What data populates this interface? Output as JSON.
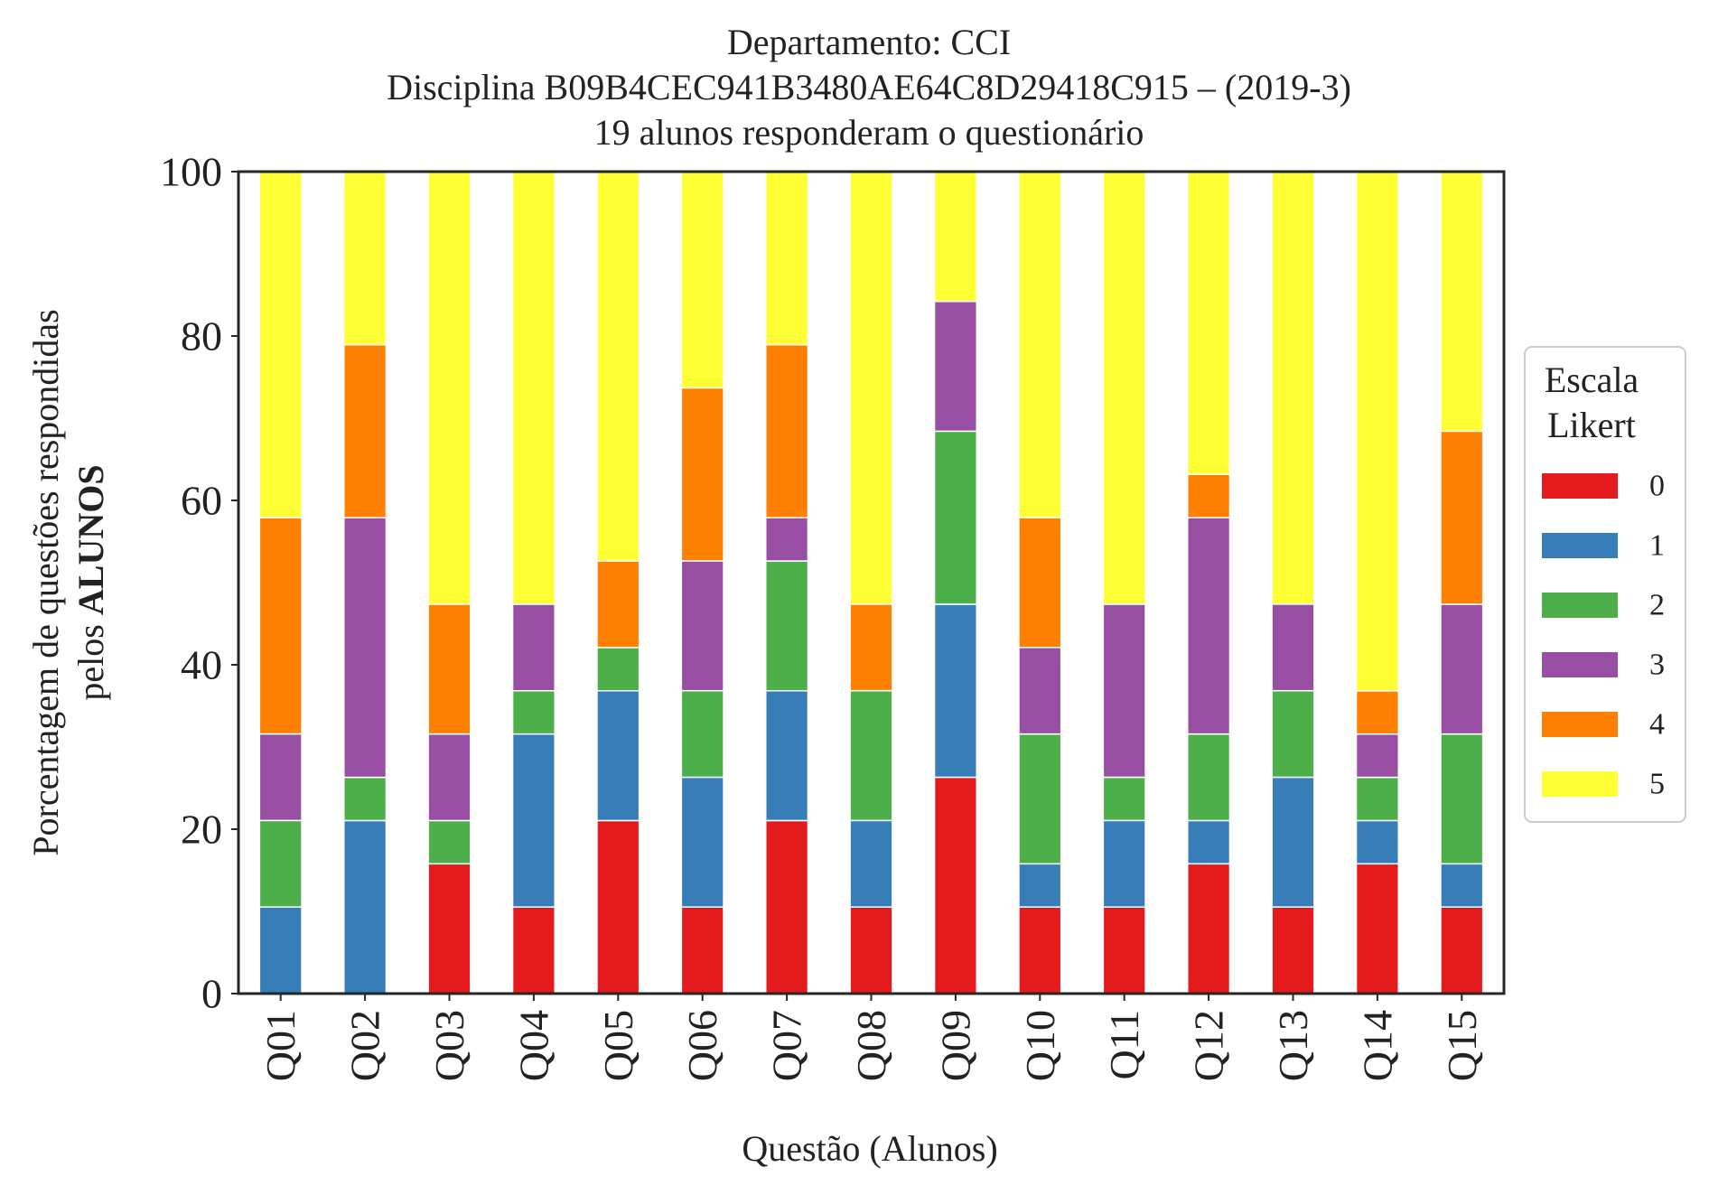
{
  "chart_data": {
    "type": "bar",
    "stacked": true,
    "title_lines": [
      "Departamento: CCI",
      "Disciplina B09B4CEC941B3480AE64C8D29418C915 – (2019-3)",
      "19 alunos responderam o questionário"
    ],
    "xlabel": "Questão (Alunos)",
    "ylabel_line1": "Porcentagem de questões respondidas",
    "ylabel_line2_prefix": "pelos ",
    "ylabel_line2_bold": "ALUNOS",
    "ylim": [
      0,
      100
    ],
    "yticks": [
      "0",
      "20",
      "40",
      "60",
      "80",
      "100"
    ],
    "categories": [
      "Q01",
      "Q02",
      "Q03",
      "Q04",
      "Q05",
      "Q06",
      "Q07",
      "Q08",
      "Q09",
      "Q10",
      "Q11",
      "Q12",
      "Q13",
      "Q14",
      "Q15"
    ],
    "legend": {
      "title_line1": "Escala",
      "title_line2": "Likert",
      "placement": "center-right, outside plot"
    },
    "series": [
      {
        "name": "0",
        "color": "#e41a1c",
        "values": [
          0,
          0,
          15.79,
          10.53,
          21.05,
          10.53,
          21.05,
          10.53,
          26.32,
          10.53,
          10.53,
          15.79,
          10.53,
          15.79,
          10.53
        ]
      },
      {
        "name": "1",
        "color": "#377eb8",
        "values": [
          10.53,
          21.05,
          0,
          21.05,
          15.79,
          15.79,
          15.79,
          10.53,
          21.05,
          5.26,
          10.53,
          5.26,
          15.79,
          5.26,
          5.26
        ]
      },
      {
        "name": "2",
        "color": "#4daf4a",
        "values": [
          10.53,
          5.26,
          5.26,
          5.26,
          5.26,
          10.53,
          15.79,
          15.79,
          21.05,
          15.79,
          5.26,
          10.53,
          10.53,
          5.26,
          15.79
        ]
      },
      {
        "name": "3",
        "color": "#984ea3",
        "values": [
          10.53,
          31.58,
          10.53,
          10.53,
          0,
          15.79,
          5.26,
          0,
          15.79,
          10.53,
          21.05,
          26.32,
          10.53,
          5.26,
          15.79
        ]
      },
      {
        "name": "4",
        "color": "#ff7f00",
        "values": [
          26.32,
          21.05,
          15.79,
          0,
          10.53,
          21.05,
          21.05,
          10.53,
          0,
          15.79,
          0,
          5.26,
          0,
          5.26,
          21.05
        ]
      },
      {
        "name": "5",
        "color": "#ffff33",
        "values": [
          42.11,
          21.05,
          52.63,
          52.63,
          47.37,
          26.32,
          21.05,
          52.63,
          15.79,
          42.11,
          52.63,
          36.84,
          52.63,
          63.16,
          31.58
        ]
      }
    ]
  }
}
